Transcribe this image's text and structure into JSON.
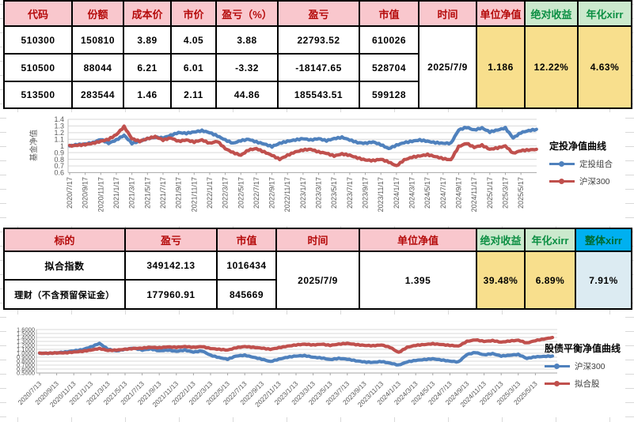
{
  "colors": {
    "header_pink_bg": "#f9c7cd",
    "header_pink_text": "#b50b0b",
    "header_green_bg": "#cbe9cd",
    "header_green_text": "#0c8f43",
    "header_blue_bg": "#00b0f0",
    "header_blue_text": "#006b2f",
    "value_yellow_bg": "#f8df8d",
    "value_yellow_text": "#9c6500",
    "value_lightblue_bg": "#dcebf2",
    "series_blue": "#4F81BD",
    "series_red": "#C0504D"
  },
  "table1": {
    "headers": [
      "代码",
      "份额",
      "成本价",
      "市价",
      "盈亏（%）",
      "盈亏",
      "市值",
      "时间",
      "单位净值",
      "绝对收益",
      "年化xirr"
    ],
    "rows": [
      [
        "510300",
        "150810",
        "3.89",
        "4.05",
        "3.88",
        "22793.52",
        "610026"
      ],
      [
        "510500",
        "88044",
        "6.21",
        "6.01",
        "-3.32",
        "-18147.65",
        "528704"
      ],
      [
        "513500",
        "283544",
        "1.46",
        "2.11",
        "44.86",
        "185543.51",
        "599128"
      ]
    ],
    "merged": {
      "time": "2025/7/9",
      "nav": "1.186",
      "abs_return": "12.22%",
      "xirr": "4.63%"
    }
  },
  "table2": {
    "headers": [
      "标的",
      "盈亏",
      "市值",
      "时间",
      "单位净值",
      "绝对收益",
      "年化xirr",
      "整体xirr"
    ],
    "rows": [
      [
        "拟合指数",
        "349142.13",
        "1016434"
      ],
      [
        "理财（不含预留保证金）",
        "177960.91",
        "845669"
      ]
    ],
    "merged": {
      "time": "2025/7/9",
      "nav": "1.395",
      "abs_return": "39.48%",
      "xirr": "6.89%",
      "overall_xirr": "7.91%"
    }
  },
  "chart_data": [
    {
      "type": "line",
      "title": "定投净值曲线",
      "ylabel": "基金净值",
      "ylim": [
        0.6,
        1.4
      ],
      "yticks": [
        "1.4",
        "1.3",
        "1.2",
        "1.1",
        "1",
        "0.9",
        "0.8",
        "0.7",
        "0.6"
      ],
      "x_unit": "monthly points from 2020/7 to 2025/7 (daily series approximated)",
      "x_tick_labels": [
        "2020/7/17",
        "2020/9/17",
        "2020/11/17",
        "2021/1/17",
        "2021/3/17",
        "2021/5/17",
        "2021/7/17",
        "2021/9/17",
        "2021/11/17",
        "2022/1/17",
        "2022/3/17",
        "2022/5/17",
        "2022/7/17",
        "2022/9/17",
        "2022/11/17",
        "2023/1/17",
        "2023/3/17",
        "2023/5/17",
        "2023/7/17",
        "2023/9/17",
        "2023/11/17",
        "2024/1/17",
        "2024/3/17",
        "2024/5/17",
        "2024/7/17",
        "2024/9/17",
        "2024/11/17",
        "2025/1/17",
        "2025/3/17",
        "2025/5/17"
      ],
      "grid": true,
      "legend_position": "right",
      "series": [
        {
          "name": "定投组合",
          "color": "#4F81BD",
          "values": [
            1.0,
            1.02,
            1.03,
            1.05,
            1.1,
            1.04,
            1.09,
            1.16,
            1.04,
            1.07,
            1.11,
            1.13,
            1.12,
            1.16,
            1.2,
            1.19,
            1.21,
            1.23,
            1.2,
            1.15,
            1.09,
            1.04,
            1.08,
            1.1,
            1.06,
            1.03,
            0.99,
            1.04,
            1.07,
            1.09,
            1.11,
            1.09,
            1.11,
            1.08,
            1.11,
            1.13,
            1.09,
            1.05,
            1.04,
            1.06,
            1.02,
            0.96,
            1.01,
            1.05,
            1.07,
            1.09,
            1.07,
            1.05,
            1.04,
            1.04,
            1.24,
            1.28,
            1.24,
            1.27,
            1.21,
            1.24,
            1.27,
            1.12,
            1.2,
            1.23,
            1.25
          ]
        },
        {
          "name": "沪深300",
          "color": "#C0504D",
          "values": [
            1.0,
            1.01,
            1.02,
            1.04,
            1.07,
            1.1,
            1.17,
            1.29,
            1.11,
            1.07,
            1.11,
            1.14,
            1.09,
            1.12,
            1.07,
            1.09,
            1.06,
            1.09,
            1.04,
            1.07,
            0.96,
            0.9,
            0.86,
            0.94,
            0.96,
            0.91,
            0.86,
            0.8,
            0.86,
            0.91,
            0.94,
            0.95,
            0.91,
            0.89,
            0.85,
            0.88,
            0.86,
            0.82,
            0.79,
            0.78,
            0.8,
            0.76,
            0.7,
            0.79,
            0.83,
            0.85,
            0.87,
            0.84,
            0.81,
            0.79,
            0.99,
            1.04,
            0.98,
            1.01,
            0.95,
            0.97,
            1.0,
            0.89,
            0.93,
            0.94,
            0.95
          ]
        }
      ]
    },
    {
      "type": "line",
      "title": "股债平衡净值曲线",
      "ylabel": "",
      "ylim": [
        0.5,
        1.6
      ],
      "yticks": [
        "1.6000",
        "1.5000",
        "1.4000",
        "1.3000",
        "1.2000",
        "1.1000",
        "1.0000",
        "0.9000",
        "0.8000",
        "0.7000",
        "0.6000",
        "0.5000"
      ],
      "x_unit": "monthly points from 2020/7 to 2025/7 (daily series approximated)",
      "x_tick_labels": [
        "2020/7/13",
        "2020/9/13",
        "2020/11/13",
        "2021/1/13",
        "2021/3/13",
        "2021/5/13",
        "2021/7/13",
        "2021/9/13",
        "2021/11/13",
        "2022/1/13",
        "2022/3/13",
        "2022/5/13",
        "2022/7/13",
        "2022/9/13",
        "2022/11/13",
        "2023/1/13",
        "2023/3/13",
        "2023/5/13",
        "2023/7/13",
        "2023/9/13",
        "2023/11/13",
        "2024/1/13",
        "2024/3/13",
        "2024/5/13",
        "2024/7/13",
        "2024/9/13",
        "2024/11/13",
        "2025/1/13",
        "2025/3/13",
        "2025/5/13"
      ],
      "grid": true,
      "legend_position": "right",
      "series": [
        {
          "name": "沪深300",
          "color": "#4F81BD",
          "values": [
            1.0,
            1.0,
            1.01,
            1.03,
            1.06,
            1.09,
            1.16,
            1.25,
            1.1,
            1.06,
            1.1,
            1.13,
            1.08,
            1.11,
            1.06,
            1.08,
            1.05,
            1.08,
            1.03,
            1.06,
            0.95,
            0.89,
            0.85,
            0.93,
            0.95,
            0.9,
            0.85,
            0.79,
            0.85,
            0.9,
            0.93,
            0.94,
            0.9,
            0.88,
            0.84,
            0.87,
            0.85,
            0.81,
            0.78,
            0.77,
            0.79,
            0.75,
            0.7,
            0.78,
            0.82,
            0.84,
            0.86,
            0.83,
            0.8,
            0.78,
            0.97,
            1.02,
            0.96,
            0.99,
            0.93,
            0.95,
            0.97,
            0.87,
            0.91,
            0.92,
            0.93
          ]
        },
        {
          "name": "拟合股",
          "color": "#C0504D",
          "values": [
            1.0,
            1.0,
            1.01,
            1.01,
            1.03,
            1.05,
            1.08,
            1.12,
            1.07,
            1.08,
            1.1,
            1.12,
            1.13,
            1.15,
            1.14,
            1.16,
            1.15,
            1.17,
            1.15,
            1.17,
            1.12,
            1.1,
            1.08,
            1.14,
            1.17,
            1.15,
            1.13,
            1.1,
            1.14,
            1.18,
            1.21,
            1.23,
            1.21,
            1.23,
            1.2,
            1.23,
            1.25,
            1.22,
            1.2,
            1.19,
            1.21,
            1.15,
            1.02,
            1.15,
            1.2,
            1.22,
            1.24,
            1.22,
            1.2,
            1.18,
            1.3,
            1.34,
            1.3,
            1.32,
            1.28,
            1.31,
            1.33,
            1.26,
            1.32,
            1.36,
            1.4
          ]
        }
      ]
    }
  ]
}
